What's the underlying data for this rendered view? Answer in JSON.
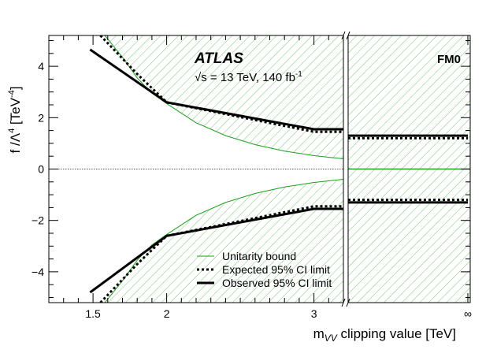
{
  "chart_data": {
    "type": "line",
    "title": "ATLAS",
    "energy_label": "√s = 13 TeV, 140 fb",
    "energy_label_sup": "-1",
    "panel_label": "FM0",
    "xlabel_main": "m",
    "xlabel_sub": "VV",
    "xlabel_rest": " clipping value [TeV]",
    "ylabel_main": "f /Λ",
    "ylabel_sup1": "4",
    "ylabel_unit": " [TeV",
    "ylabel_sup2": "-4",
    "ylabel_close": "]",
    "ylim": [
      -5.2,
      5.2
    ],
    "xlim_finite": [
      1.2,
      3.2
    ],
    "x_ticks": [
      {
        "value": 1.5,
        "label": "1.5"
      },
      {
        "value": 2,
        "label": "2"
      },
      {
        "value": 3,
        "label": "3"
      }
    ],
    "x_inf_label": "∞",
    "y_ticks": [
      {
        "value": -4,
        "label": "−4"
      },
      {
        "value": -2,
        "label": "−2"
      },
      {
        "value": 0,
        "label": "0"
      },
      {
        "value": 2,
        "label": "2"
      },
      {
        "value": 4,
        "label": "4"
      }
    ],
    "legend": [
      {
        "key": "unitarity",
        "label": "Unitarity bound"
      },
      {
        "key": "expected",
        "label": "Expected 95% CI limit"
      },
      {
        "key": "observed",
        "label": "Observed 95% CI limit"
      }
    ],
    "colors": {
      "unitarity": "#1e9e1e",
      "hatch": "#7cc47c",
      "limits": "#000000"
    },
    "unitarity_bound": {
      "x": [
        1.58,
        1.7,
        1.8,
        1.9,
        2.0,
        2.2,
        2.4,
        2.6,
        2.8,
        3.0,
        3.2
      ],
      "y": [
        5.2,
        4.35,
        3.55,
        2.95,
        2.55,
        1.8,
        1.3,
        0.95,
        0.7,
        0.52,
        0.4
      ]
    },
    "series": [
      {
        "name": "Observed 95% CI limit",
        "upper": {
          "x": [
            1.48,
            2.0,
            3.0,
            3.2
          ],
          "y": [
            4.65,
            2.6,
            1.55,
            1.55
          ]
        },
        "lower": {
          "x": [
            1.48,
            2.0,
            3.0,
            3.2
          ],
          "y": [
            -4.8,
            -2.6,
            -1.55,
            -1.55
          ]
        },
        "inf": {
          "upper": 1.3,
          "lower": -1.3
        }
      },
      {
        "name": "Expected 95% CI limit",
        "upper": {
          "x": [
            1.55,
            1.8,
            2.0,
            3.0,
            3.2
          ],
          "y": [
            5.2,
            3.7,
            2.6,
            1.45,
            1.45
          ]
        },
        "lower": {
          "x": [
            1.55,
            1.8,
            2.0,
            3.0,
            3.2
          ],
          "y": [
            -5.2,
            -3.7,
            -2.6,
            -1.45,
            -1.45
          ]
        },
        "inf": {
          "upper": 1.2,
          "lower": -1.2
        }
      }
    ]
  }
}
